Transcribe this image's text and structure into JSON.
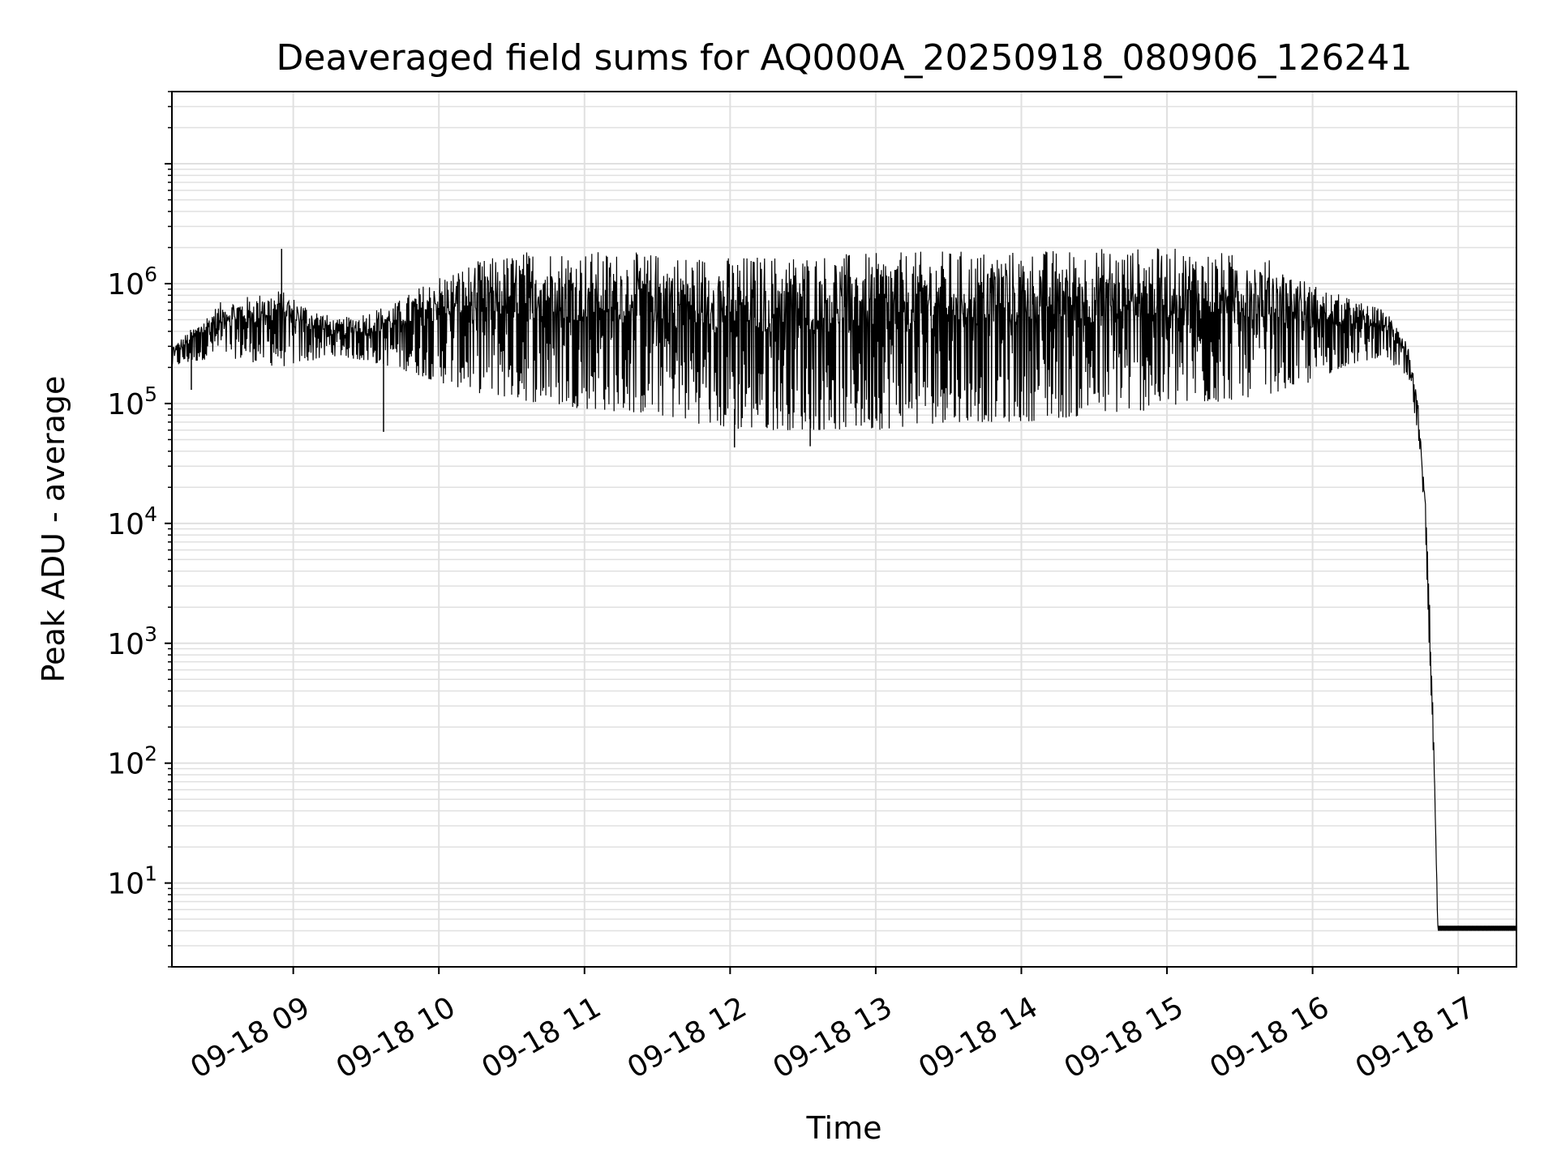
{
  "chart_data": {
    "type": "line",
    "title": "Deaveraged field sums for AQ000A_20250918_080906_126241",
    "xlabel": "Time",
    "ylabel": "Peak ADU - average",
    "yscale": "log",
    "ylim": [
      2,
      40000000
    ],
    "xlim_hours": [
      8.1667,
      17.4
    ],
    "grid": true,
    "x_tick_values": [
      9,
      10,
      11,
      12,
      13,
      14,
      15,
      16,
      17
    ],
    "x_tick_labels": [
      "09-18 09",
      "09-18 10",
      "09-18 11",
      "09-18 12",
      "09-18 13",
      "09-18 14",
      "09-18 15",
      "09-18 16",
      "09-18 17"
    ],
    "y_ticks": [
      {
        "value": 10,
        "base": "10",
        "exp": "1"
      },
      {
        "value": 100,
        "base": "10",
        "exp": "2"
      },
      {
        "value": 1000,
        "base": "10",
        "exp": "3"
      },
      {
        "value": 10000,
        "base": "10",
        "exp": "4"
      },
      {
        "value": 100000,
        "base": "10",
        "exp": "5"
      },
      {
        "value": 1000000,
        "base": "10",
        "exp": "6"
      }
    ],
    "line_color": "#000000",
    "grid_color": "#e0e0e0",
    "series": [
      {
        "name": "field sums",
        "envelope": {
          "hours": [
            8.167,
            8.5,
            8.9,
            9.3,
            9.7,
            10.0,
            10.3,
            10.7,
            11.0,
            11.5,
            12.0,
            12.5,
            13.0,
            13.5,
            14.0,
            14.5,
            15.0,
            15.3,
            15.7,
            16.0,
            16.2,
            16.5,
            16.65,
            16.72,
            16.77,
            16.8,
            16.83,
            16.86,
            16.87,
            17.4
          ],
          "upper": [
            300000,
            700000,
            900000,
            500000,
            700000,
            1200000,
            1600000,
            2000000,
            1900000,
            1800000,
            1700000,
            1800000,
            1800000,
            1900000,
            1900000,
            2000000,
            2000000,
            1900000,
            1600000,
            1000000,
            800000,
            600000,
            350000,
            120000,
            20000,
            3000,
            200,
            4.4,
            4.4,
            4.4
          ],
          "lower": [
            200000,
            250000,
            200000,
            250000,
            200000,
            150000,
            120000,
            100000,
            90000,
            80000,
            60000,
            60000,
            60000,
            70000,
            70000,
            80000,
            90000,
            100000,
            120000,
            150000,
            200000,
            250000,
            150000,
            60000,
            10000,
            1000,
            100,
            4.0,
            4.0,
            4.0
          ]
        },
        "highlights": [
          {
            "hour": 8.92,
            "value": 1950000
          },
          {
            "hour": 9.62,
            "value": 58000
          },
          {
            "hour": 8.3,
            "value": 130000
          },
          {
            "hour": 12.55,
            "value": 44000
          },
          {
            "hour": 12.03,
            "value": 43000
          }
        ]
      }
    ]
  }
}
